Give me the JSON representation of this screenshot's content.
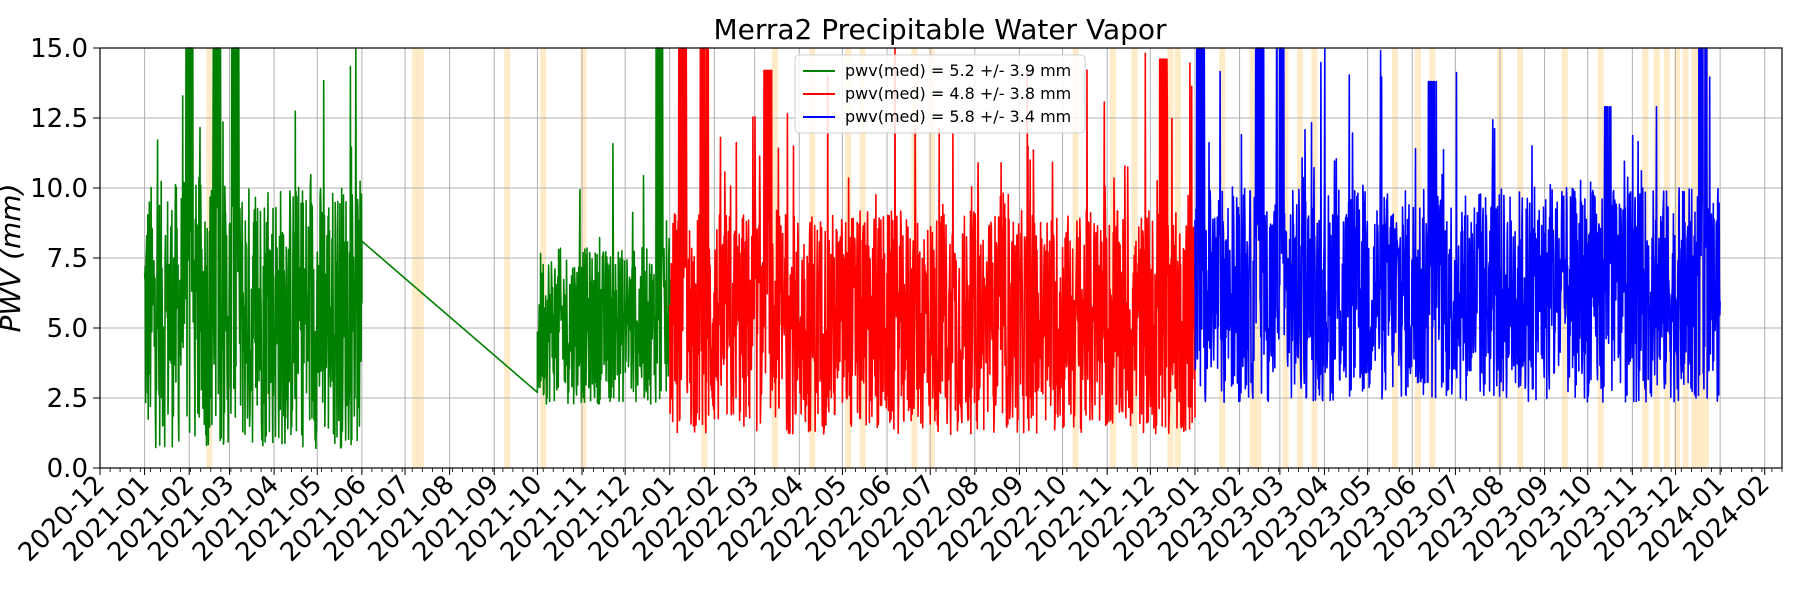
{
  "chart_data": {
    "type": "line",
    "title": "Merra2 Precipitable Water Vapor",
    "xlabel": "",
    "ylabel": "PWV (mm)",
    "xlim": [
      "2020-12-01",
      "2024-02-13"
    ],
    "ylim": [
      0,
      15
    ],
    "grid": true,
    "legend_position": "top-center",
    "x_tick_labels": [
      "2020-12",
      "2021-01",
      "2021-02",
      "2021-03",
      "2021-04",
      "2021-05",
      "2021-06",
      "2021-07",
      "2021-08",
      "2021-09",
      "2021-10",
      "2021-11",
      "2021-12",
      "2022-01",
      "2022-02",
      "2022-03",
      "2022-04",
      "2022-05",
      "2022-06",
      "2022-07",
      "2022-08",
      "2022-09",
      "2022-10",
      "2022-11",
      "2022-12",
      "2023-01",
      "2023-02",
      "2023-03",
      "2023-04",
      "2023-05",
      "2023-06",
      "2023-07",
      "2023-08",
      "2023-09",
      "2023-10",
      "2023-11",
      "2023-12",
      "2024-01",
      "2024-02"
    ],
    "y_tick_labels": [
      "0.0",
      "2.5",
      "5.0",
      "7.5",
      "10.0",
      "12.5",
      "15.0"
    ],
    "y_ticks": [
      0,
      2.5,
      5.0,
      7.5,
      10.0,
      12.5,
      15.0
    ],
    "series": [
      {
        "name": "pwv(med) = 5.2 +/- 3.9 mm",
        "color": "#008000",
        "segments": [
          {
            "start": "2021-01-01",
            "end": "2021-06-01",
            "base": 5.0,
            "amp": 6.0,
            "peaks": [
              {
                "date": "2021-02-01",
                "value": 15
              },
              {
                "date": "2021-02-20",
                "value": 15
              },
              {
                "date": "2021-03-05",
                "value": 15
              }
            ]
          },
          {
            "start": "2021-06-01",
            "end": "2021-10-01",
            "linear": true,
            "from": 8.1,
            "to": 2.7
          },
          {
            "start": "2021-10-01",
            "end": "2022-01-01",
            "base": 4.8,
            "amp": 3.5,
            "peaks": [
              {
                "date": "2021-12-25",
                "value": 15
              }
            ]
          }
        ]
      },
      {
        "name": "pwv(med) = 4.8 +/- 3.8 mm",
        "color": "#ff0000",
        "segments": [
          {
            "start": "2022-01-01",
            "end": "2023-01-01",
            "base": 4.8,
            "amp": 5.0,
            "peaks": [
              {
                "date": "2022-01-10",
                "value": 15
              },
              {
                "date": "2022-01-25",
                "value": 15
              },
              {
                "date": "2022-03-10",
                "value": 14.2
              },
              {
                "date": "2022-12-10",
                "value": 14.6
              }
            ]
          }
        ]
      },
      {
        "name": "pwv(med) = 5.8 +/- 3.4 mm",
        "color": "#0000ff",
        "segments": [
          {
            "start": "2023-01-01",
            "end": "2024-01-01",
            "base": 5.8,
            "amp": 4.8,
            "peaks": [
              {
                "date": "2023-01-05",
                "value": 15
              },
              {
                "date": "2023-02-15",
                "value": 15
              },
              {
                "date": "2023-03-01",
                "value": 15
              },
              {
                "date": "2023-06-15",
                "value": 13.8
              },
              {
                "date": "2023-10-15",
                "value": 12.9
              },
              {
                "date": "2023-12-20",
                "value": 15
              }
            ]
          }
        ]
      }
    ],
    "highlight_bands": [
      "2021-02-15",
      "2021-07-08",
      "2021-07-12",
      "2021-09-10",
      "2021-10-05",
      "2021-11-02",
      "2022-01-25",
      "2022-03-15",
      "2022-04-10",
      "2022-05-05",
      "2022-05-15",
      "2022-06-20",
      "2022-07-02",
      "2022-10-10",
      "2022-11-05",
      "2022-11-20",
      "2022-12-15",
      "2022-12-20",
      "2023-01-20",
      "2023-02-10",
      "2023-02-14",
      "2023-03-05",
      "2023-03-15",
      "2023-03-25",
      "2023-05-20",
      "2023-06-05",
      "2023-06-15",
      "2023-08-01",
      "2023-08-15",
      "2023-09-15",
      "2023-10-10",
      "2023-11-10",
      "2023-11-18",
      "2023-11-25",
      "2023-12-02",
      "2023-12-08",
      "2023-12-14",
      "2023-12-18",
      "2023-12-22"
    ],
    "highlight_color": "#ffa500"
  }
}
